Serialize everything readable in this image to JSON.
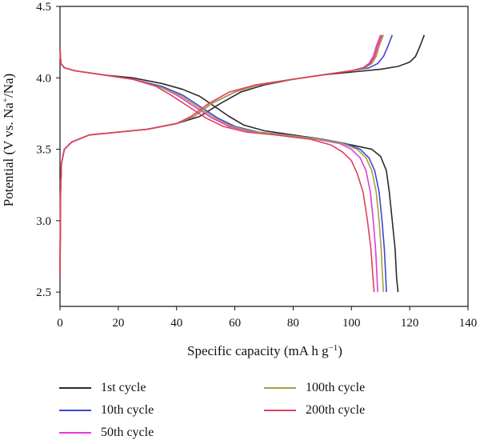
{
  "chart_data": {
    "type": "line",
    "title": "",
    "xlabel": "Specific capacity (mA h g",
    "xlabel_sup": "−1",
    "xlabel_end": ")",
    "ylabel": "Potential (V vs. Na",
    "ylabel_sup": "+",
    "ylabel_end": "/Na)",
    "xlim": [
      0,
      140
    ],
    "ylim": [
      2.4,
      4.5
    ],
    "xticks": [
      0,
      20,
      40,
      60,
      80,
      100,
      120,
      140
    ],
    "yticks": [
      2.5,
      3.0,
      3.5,
      4.0,
      4.5
    ],
    "xtick_labels": [
      "0",
      "20",
      "40",
      "60",
      "80",
      "100",
      "120",
      "140"
    ],
    "ytick_labels": [
      "2.5",
      "3.0",
      "3.5",
      "4.0",
      "4.5"
    ],
    "grid": false,
    "legend_position": "bottom",
    "series": [
      {
        "name": "1st cycle",
        "color": "#2b2b2b",
        "charge": [
          [
            0,
            2.6
          ],
          [
            0.2,
            3.2
          ],
          [
            0.5,
            3.4
          ],
          [
            1.5,
            3.5
          ],
          [
            4,
            3.55
          ],
          [
            10,
            3.6
          ],
          [
            20,
            3.62
          ],
          [
            30,
            3.64
          ],
          [
            40,
            3.68
          ],
          [
            48,
            3.73
          ],
          [
            55,
            3.82
          ],
          [
            62,
            3.9
          ],
          [
            70,
            3.95
          ],
          [
            80,
            3.99
          ],
          [
            90,
            4.02
          ],
          [
            100,
            4.04
          ],
          [
            110,
            4.06
          ],
          [
            116,
            4.08
          ],
          [
            120,
            4.11
          ],
          [
            122,
            4.15
          ],
          [
            123.5,
            4.22
          ],
          [
            125,
            4.3
          ]
        ],
        "discharge": [
          [
            0,
            4.2
          ],
          [
            0.3,
            4.1
          ],
          [
            1.5,
            4.07
          ],
          [
            5,
            4.05
          ],
          [
            15,
            4.02
          ],
          [
            25,
            4.0
          ],
          [
            35,
            3.96
          ],
          [
            42,
            3.92
          ],
          [
            48,
            3.87
          ],
          [
            53,
            3.8
          ],
          [
            58,
            3.73
          ],
          [
            63,
            3.67
          ],
          [
            70,
            3.63
          ],
          [
            80,
            3.6
          ],
          [
            90,
            3.57
          ],
          [
            100,
            3.53
          ],
          [
            107,
            3.5
          ],
          [
            110,
            3.45
          ],
          [
            112,
            3.35
          ],
          [
            113,
            3.2
          ],
          [
            114,
            3.0
          ],
          [
            115,
            2.8
          ],
          [
            115.5,
            2.6
          ],
          [
            116,
            2.5
          ]
        ]
      },
      {
        "name": "10th cycle",
        "color": "#3b47d4",
        "charge": [
          [
            0,
            2.6
          ],
          [
            0.2,
            3.2
          ],
          [
            0.5,
            3.4
          ],
          [
            1.5,
            3.5
          ],
          [
            4,
            3.55
          ],
          [
            10,
            3.6
          ],
          [
            20,
            3.62
          ],
          [
            30,
            3.64
          ],
          [
            40,
            3.68
          ],
          [
            46,
            3.73
          ],
          [
            52,
            3.82
          ],
          [
            60,
            3.9
          ],
          [
            68,
            3.95
          ],
          [
            80,
            3.99
          ],
          [
            90,
            4.02
          ],
          [
            100,
            4.05
          ],
          [
            106,
            4.07
          ],
          [
            109,
            4.1
          ],
          [
            111,
            4.15
          ],
          [
            112.5,
            4.22
          ],
          [
            114,
            4.3
          ]
        ],
        "discharge": [
          [
            0,
            4.2
          ],
          [
            0.3,
            4.1
          ],
          [
            1.5,
            4.07
          ],
          [
            5,
            4.05
          ],
          [
            15,
            4.02
          ],
          [
            25,
            3.99
          ],
          [
            35,
            3.94
          ],
          [
            42,
            3.88
          ],
          [
            48,
            3.8
          ],
          [
            54,
            3.72
          ],
          [
            60,
            3.66
          ],
          [
            68,
            3.62
          ],
          [
            78,
            3.6
          ],
          [
            90,
            3.57
          ],
          [
            98,
            3.54
          ],
          [
            103,
            3.5
          ],
          [
            106,
            3.44
          ],
          [
            108,
            3.35
          ],
          [
            109.5,
            3.2
          ],
          [
            110.5,
            3.0
          ],
          [
            111.3,
            2.8
          ],
          [
            111.8,
            2.6
          ],
          [
            112,
            2.5
          ]
        ]
      },
      {
        "name": "50th cycle",
        "color": "#e23ad8",
        "charge": [
          [
            0,
            2.6
          ],
          [
            0.2,
            3.2
          ],
          [
            0.5,
            3.4
          ],
          [
            1.5,
            3.5
          ],
          [
            4,
            3.55
          ],
          [
            10,
            3.6
          ],
          [
            20,
            3.62
          ],
          [
            30,
            3.64
          ],
          [
            40,
            3.68
          ],
          [
            46,
            3.73
          ],
          [
            52,
            3.82
          ],
          [
            60,
            3.9
          ],
          [
            68,
            3.95
          ],
          [
            80,
            3.99
          ],
          [
            90,
            4.02
          ],
          [
            100,
            4.05
          ],
          [
            104,
            4.07
          ],
          [
            106,
            4.1
          ],
          [
            107.5,
            4.15
          ],
          [
            108.5,
            4.22
          ],
          [
            110,
            4.3
          ]
        ],
        "discharge": [
          [
            0,
            4.2
          ],
          [
            0.3,
            4.1
          ],
          [
            1.5,
            4.07
          ],
          [
            5,
            4.05
          ],
          [
            15,
            4.02
          ],
          [
            25,
            3.99
          ],
          [
            35,
            3.93
          ],
          [
            40,
            3.88
          ],
          [
            46,
            3.8
          ],
          [
            52,
            3.72
          ],
          [
            58,
            3.66
          ],
          [
            66,
            3.62
          ],
          [
            76,
            3.6
          ],
          [
            88,
            3.57
          ],
          [
            96,
            3.54
          ],
          [
            100,
            3.5
          ],
          [
            103,
            3.44
          ],
          [
            105,
            3.35
          ],
          [
            106.5,
            3.2
          ],
          [
            107.5,
            3.0
          ],
          [
            108.3,
            2.8
          ],
          [
            108.8,
            2.6
          ],
          [
            109,
            2.5
          ]
        ]
      },
      {
        "name": "100th cycle",
        "color": "#a8a040",
        "charge": [
          [
            0,
            2.6
          ],
          [
            0.2,
            3.2
          ],
          [
            0.5,
            3.4
          ],
          [
            1.5,
            3.5
          ],
          [
            4,
            3.55
          ],
          [
            10,
            3.6
          ],
          [
            20,
            3.62
          ],
          [
            30,
            3.64
          ],
          [
            40,
            3.68
          ],
          [
            46,
            3.73
          ],
          [
            52,
            3.82
          ],
          [
            60,
            3.9
          ],
          [
            68,
            3.95
          ],
          [
            80,
            3.99
          ],
          [
            90,
            4.02
          ],
          [
            100,
            4.05
          ],
          [
            104.5,
            4.07
          ],
          [
            107,
            4.1
          ],
          [
            108.5,
            4.15
          ],
          [
            109.5,
            4.22
          ],
          [
            111,
            4.3
          ]
        ],
        "discharge": [
          [
            0,
            4.2
          ],
          [
            0.3,
            4.1
          ],
          [
            1.5,
            4.07
          ],
          [
            5,
            4.05
          ],
          [
            15,
            4.02
          ],
          [
            25,
            3.99
          ],
          [
            35,
            3.93
          ],
          [
            41,
            3.88
          ],
          [
            47,
            3.8
          ],
          [
            53,
            3.72
          ],
          [
            59,
            3.66
          ],
          [
            67,
            3.62
          ],
          [
            77,
            3.6
          ],
          [
            89,
            3.57
          ],
          [
            97,
            3.54
          ],
          [
            102,
            3.5
          ],
          [
            105,
            3.44
          ],
          [
            107,
            3.35
          ],
          [
            108.5,
            3.2
          ],
          [
            109.5,
            3.0
          ],
          [
            110.2,
            2.8
          ],
          [
            110.7,
            2.6
          ],
          [
            111,
            2.5
          ]
        ]
      },
      {
        "name": "200th cycle",
        "color": "#e0405a",
        "charge": [
          [
            0,
            2.6
          ],
          [
            0.2,
            3.2
          ],
          [
            0.5,
            3.4
          ],
          [
            1.5,
            3.5
          ],
          [
            4,
            3.55
          ],
          [
            10,
            3.6
          ],
          [
            20,
            3.62
          ],
          [
            30,
            3.64
          ],
          [
            40,
            3.68
          ],
          [
            45,
            3.73
          ],
          [
            51,
            3.82
          ],
          [
            58,
            3.9
          ],
          [
            67,
            3.95
          ],
          [
            80,
            3.99
          ],
          [
            90,
            4.02
          ],
          [
            100,
            4.05
          ],
          [
            104,
            4.07
          ],
          [
            106.5,
            4.1
          ],
          [
            108,
            4.15
          ],
          [
            109,
            4.22
          ],
          [
            110.5,
            4.3
          ]
        ],
        "discharge": [
          [
            0,
            4.2
          ],
          [
            0.3,
            4.1
          ],
          [
            1.5,
            4.07
          ],
          [
            5,
            4.05
          ],
          [
            15,
            4.02
          ],
          [
            25,
            3.99
          ],
          [
            33,
            3.94
          ],
          [
            38,
            3.88
          ],
          [
            44,
            3.8
          ],
          [
            50,
            3.72
          ],
          [
            56,
            3.66
          ],
          [
            64,
            3.62
          ],
          [
            74,
            3.6
          ],
          [
            86,
            3.57
          ],
          [
            93,
            3.53
          ],
          [
            97,
            3.48
          ],
          [
            100,
            3.42
          ],
          [
            102,
            3.33
          ],
          [
            104,
            3.2
          ],
          [
            105.5,
            3.0
          ],
          [
            106.7,
            2.8
          ],
          [
            107.4,
            2.6
          ],
          [
            107.8,
            2.5
          ]
        ]
      }
    ]
  }
}
